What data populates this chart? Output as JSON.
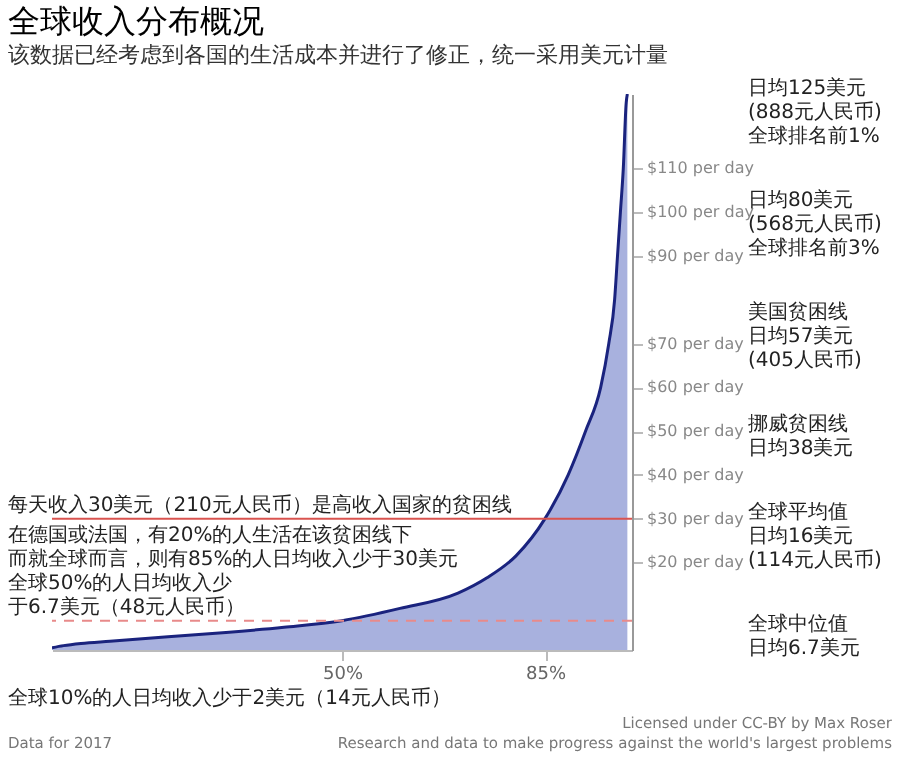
{
  "chart_data": {
    "type": "area",
    "title": "全球收入分布概况",
    "subtitle": "该数据已经考虑到各国的生活成本并进行了修正，统一采用美元计量",
    "x": [
      0,
      2,
      5,
      10,
      20,
      30,
      40,
      50,
      60,
      70,
      75,
      80,
      85,
      89,
      92,
      94.6,
      96,
      97,
      97.5,
      98,
      98.5,
      99,
      99.2
    ],
    "series": [
      {
        "color": "#9fa8da",
        "values": [
          0.5,
          1,
          1.5,
          2,
          3,
          4,
          5.2,
          6.7,
          9.5,
          13,
          16.5,
          21.5,
          30,
          40,
          50,
          60,
          70,
          80,
          90,
          100,
          110,
          125,
          127
        ]
      }
    ],
    "xlim": [
      0,
      100
    ],
    "xticks": [
      {
        "value": 50,
        "label": "50%"
      },
      {
        "value": 85,
        "label": "85%"
      }
    ],
    "ylim": [
      0,
      127
    ],
    "yticks": [
      {
        "value": 20,
        "label": "$20 per day"
      },
      {
        "value": 30,
        "label": "$30 per day"
      },
      {
        "value": 40,
        "label": "$40 per day"
      },
      {
        "value": 50,
        "label": "$50 per day"
      },
      {
        "value": 60,
        "label": "$60 per day"
      },
      {
        "value": 70,
        "label": "$70 per day"
      },
      {
        "value": 90,
        "label": "$90 per day"
      },
      {
        "value": 100,
        "label": "$100 per day"
      },
      {
        "value": 110,
        "label": "$110 per day"
      }
    ],
    "ref_lines": [
      {
        "axis": "y",
        "value": 30,
        "label": "每天收入30美元（210元人民币）是高收入国家的贫困线",
        "color": "#d9534f"
      },
      {
        "axis": "y",
        "value": 6.7,
        "label": "全球50%的人日均收入少于6.7美元（48元人民币）",
        "color": "#e88a8a",
        "line_style": "dashed"
      }
    ],
    "annotations": [
      "日均125美元(888元人民币)全球排名前1%",
      "日均80美元(568元人民币)全球排名前3%",
      "美国贫困线日均57美元(405人民币)",
      "挪威贫困线日均38美元",
      "全球平均值日均16美元(114元人民币)",
      "全球中位值日均6.7美元",
      {
        "text": "在德国或法国，有20%的人生活在该贫困线下",
        "x": 0,
        "y": 30
      },
      {
        "text": "而就全球而言，则有85%的人日均收入少于30美元",
        "x": 0,
        "y": 30
      },
      "全球10%的人日均收入少于2美元（14元人民币）",
      "Data for 2017",
      "Licensed under CC-BY by Max Roser",
      "Research and data to make progress against the world's largest problems"
    ]
  }
}
